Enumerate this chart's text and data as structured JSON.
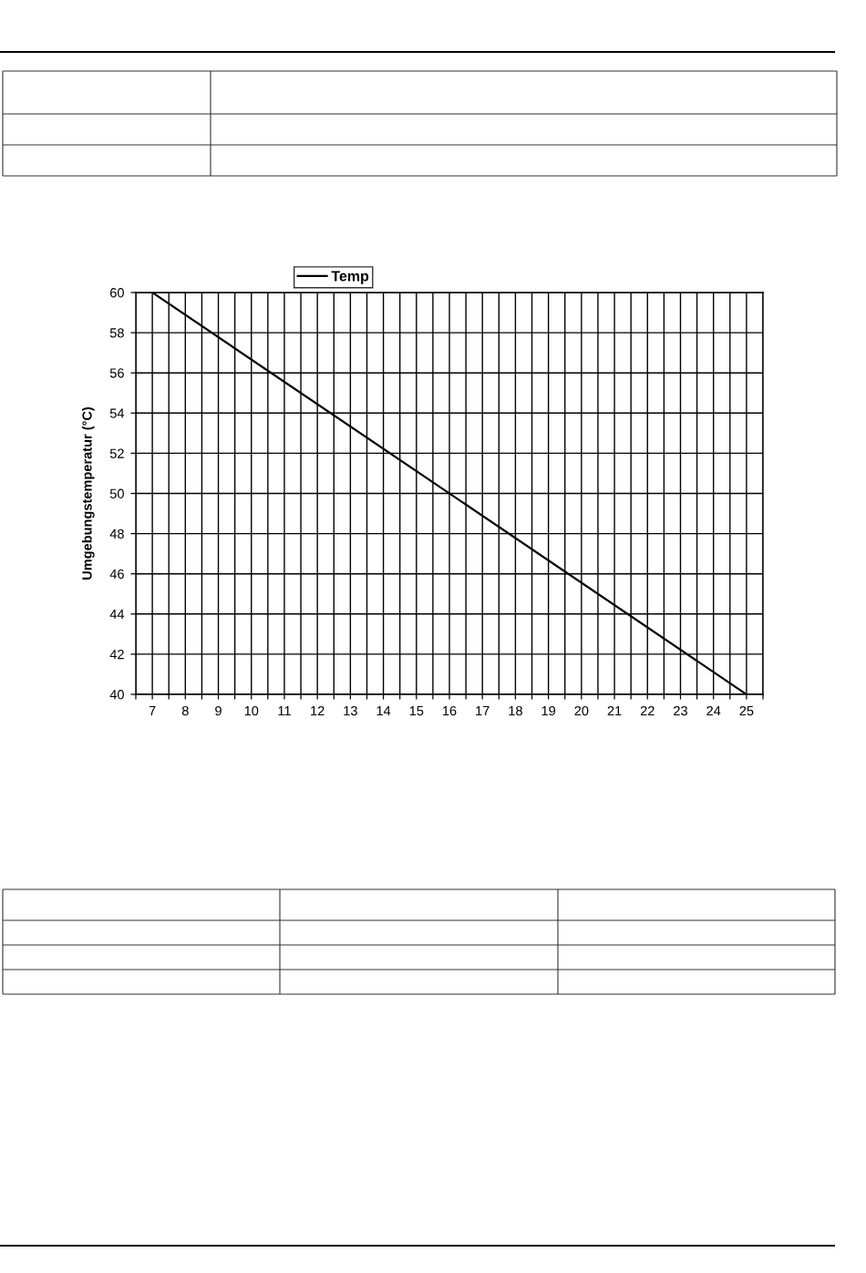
{
  "chart_data": {
    "type": "line",
    "ylabel": "Umgebungstemperatur (°C)",
    "x": [
      7,
      25
    ],
    "series": [
      {
        "name": "Temp",
        "color": "#000000",
        "values": [
          60,
          40
        ]
      }
    ],
    "xlim": [
      6.5,
      25.5
    ],
    "xticks": [
      {
        "value": 6.5,
        "label": null
      },
      7,
      {
        "value": 7.5,
        "label": null
      },
      8,
      {
        "value": 8.5,
        "label": null
      },
      9,
      {
        "value": 9.5,
        "label": null
      },
      10,
      {
        "value": 10.5,
        "label": null
      },
      11,
      {
        "value": 11.5,
        "label": null
      },
      12,
      {
        "value": 12.5,
        "label": null
      },
      13,
      {
        "value": 13.5,
        "label": null
      },
      14,
      {
        "value": 14.5,
        "label": null
      },
      15,
      {
        "value": 15.5,
        "label": null
      },
      16,
      {
        "value": 16.5,
        "label": null
      },
      17,
      {
        "value": 17.5,
        "label": null
      },
      18,
      {
        "value": 18.5,
        "label": null
      },
      19,
      {
        "value": 19.5,
        "label": null
      },
      20,
      {
        "value": 20.5,
        "label": null
      },
      21,
      {
        "value": 21.5,
        "label": null
      },
      22,
      {
        "value": 22.5,
        "label": null
      },
      23,
      {
        "value": 23.5,
        "label": null
      },
      24,
      {
        "value": 24.5,
        "label": null
      },
      25,
      {
        "value": 25.5,
        "label": null
      }
    ],
    "ylim": [
      40,
      60
    ],
    "yticks": [
      40,
      42,
      44,
      46,
      48,
      50,
      52,
      54,
      56,
      58,
      60
    ],
    "grid": true,
    "legend": "top",
    "line_style": "solid"
  }
}
